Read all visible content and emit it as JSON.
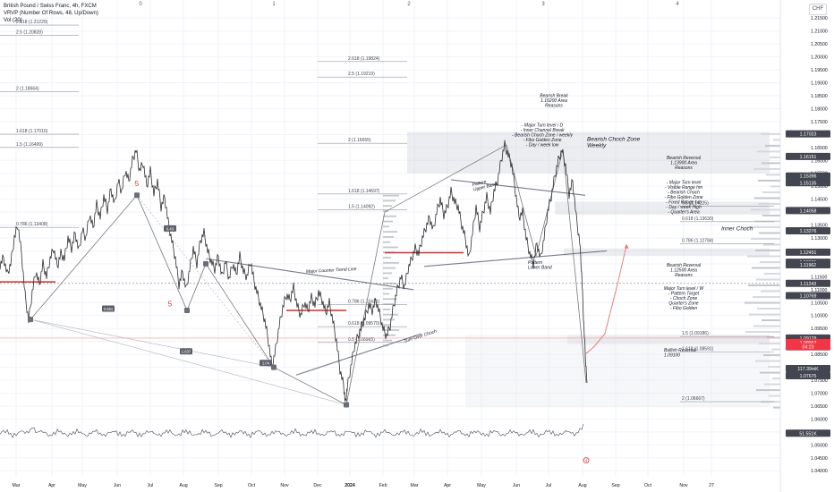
{
  "header": {
    "symbol_line": "British Pound / Swiss Franc, 4h, FXCM",
    "vrvp_line": "VRVP (Number Of Rows, 48, Up/Down)",
    "vol_line": "Vol (20)",
    "currency_button": "CHF"
  },
  "colors": {
    "wave": "#7a7a7a",
    "price": "#2f2f2f",
    "red_level": "#d32f2f",
    "projection": "#e57373",
    "volume_up": "#d7d9de",
    "volume_down": "#c4c7cd"
  },
  "chart_data": {
    "type": "line",
    "title": "",
    "xlabel": "",
    "ylabel": "",
    "x_ticks": [
      "Mar",
      "Apr",
      "May",
      "Jun",
      "Jul",
      "Aug",
      "Sep",
      "Oct",
      "Nov",
      "Dec",
      "2024",
      "Feb",
      "Mar",
      "Apr",
      "May",
      "Jun",
      "Jul",
      "Aug",
      "Sep",
      "Oct",
      "Nov",
      "27"
    ],
    "y_ticks": [
      1.04,
      1.045,
      1.05,
      1.055,
      1.06,
      1.065,
      1.07,
      1.075,
      1.08,
      1.085,
      1.09,
      1.095,
      1.1,
      1.105,
      1.11,
      1.115,
      1.12,
      1.125,
      1.13,
      1.135,
      1.14,
      1.145,
      1.15,
      1.155,
      1.16,
      1.165,
      1.17,
      1.175,
      1.18,
      1.185,
      1.19,
      1.195,
      1.2,
      1.205,
      1.21,
      1.215
    ],
    "ylim": [
      1.038,
      1.222
    ],
    "grid": true,
    "scale": "linear",
    "price_series": [
      [
        0,
        1.1195
      ],
      [
        4,
        1.1225
      ],
      [
        8,
        1.116
      ],
      [
        12,
        1.12
      ],
      [
        16,
        1.13
      ],
      [
        20,
        1.135
      ],
      [
        24,
        1.124
      ],
      [
        28,
        1.108
      ],
      [
        32,
        1.098
      ],
      [
        36,
        1.109
      ],
      [
        40,
        1.117
      ],
      [
        44,
        1.112
      ],
      [
        48,
        1.12
      ],
      [
        52,
        1.115
      ],
      [
        56,
        1.122
      ],
      [
        60,
        1.126
      ],
      [
        64,
        1.119
      ],
      [
        68,
        1.124
      ],
      [
        72,
        1.122
      ],
      [
        76,
        1.13
      ],
      [
        80,
        1.126
      ],
      [
        84,
        1.132
      ],
      [
        88,
        1.125
      ],
      [
        92,
        1.133
      ],
      [
        96,
        1.13
      ],
      [
        100,
        1.139
      ],
      [
        104,
        1.134
      ],
      [
        108,
        1.143
      ],
      [
        112,
        1.138
      ],
      [
        116,
        1.146
      ],
      [
        120,
        1.141
      ],
      [
        124,
        1.149
      ],
      [
        128,
        1.143
      ],
      [
        132,
        1.152
      ],
      [
        136,
        1.148
      ],
      [
        140,
        1.156
      ],
      [
        144,
        1.152
      ],
      [
        148,
        1.16
      ],
      [
        152,
        1.164
      ],
      [
        156,
        1.156
      ],
      [
        160,
        1.159
      ],
      [
        164,
        1.15
      ],
      [
        168,
        1.156
      ],
      [
        172,
        1.147
      ],
      [
        176,
        1.152
      ],
      [
        180,
        1.142
      ],
      [
        184,
        1.146
      ],
      [
        188,
        1.136
      ],
      [
        192,
        1.129
      ],
      [
        196,
        1.122
      ],
      [
        200,
        1.112
      ],
      [
        204,
        1.117
      ],
      [
        208,
        1.11
      ],
      [
        212,
        1.118
      ],
      [
        216,
        1.126
      ],
      [
        220,
        1.12
      ],
      [
        224,
        1.129
      ],
      [
        228,
        1.132
      ],
      [
        232,
        1.125
      ],
      [
        236,
        1.121
      ],
      [
        240,
        1.118
      ],
      [
        244,
        1.123
      ],
      [
        248,
        1.115
      ],
      [
        252,
        1.121
      ],
      [
        256,
        1.114
      ],
      [
        260,
        1.12
      ],
      [
        264,
        1.116
      ],
      [
        268,
        1.123
      ],
      [
        272,
        1.117
      ],
      [
        276,
        1.115
      ],
      [
        280,
        1.121
      ],
      [
        284,
        1.113
      ],
      [
        288,
        1.108
      ],
      [
        292,
        1.103
      ],
      [
        296,
        1.098
      ],
      [
        300,
        1.09
      ],
      [
        304,
        1.08
      ],
      [
        308,
        1.087
      ],
      [
        312,
        1.096
      ],
      [
        316,
        1.103
      ],
      [
        320,
        1.108
      ],
      [
        324,
        1.106
      ],
      [
        328,
        1.111
      ],
      [
        332,
        1.104
      ],
      [
        336,
        1.1
      ],
      [
        340,
        1.105
      ],
      [
        344,
        1.102
      ],
      [
        348,
        1.107
      ],
      [
        352,
        1.104
      ],
      [
        356,
        1.109
      ],
      [
        360,
        1.106
      ],
      [
        364,
        1.101
      ],
      [
        368,
        1.105
      ],
      [
        372,
        1.098
      ],
      [
        376,
        1.09
      ],
      [
        380,
        1.079
      ],
      [
        384,
        1.073
      ],
      [
        386,
        1.066
      ],
      [
        388,
        1.072
      ],
      [
        392,
        1.08
      ],
      [
        396,
        1.088
      ],
      [
        400,
        1.092
      ],
      [
        404,
        1.096
      ],
      [
        408,
        1.099
      ],
      [
        412,
        1.104
      ],
      [
        416,
        1.102
      ],
      [
        420,
        1.106
      ],
      [
        424,
        1.101
      ],
      [
        428,
        1.095
      ],
      [
        432,
        1.092
      ],
      [
        436,
        1.096
      ],
      [
        440,
        1.104
      ],
      [
        444,
        1.11
      ],
      [
        448,
        1.115
      ],
      [
        452,
        1.111
      ],
      [
        456,
        1.118
      ],
      [
        460,
        1.122
      ],
      [
        464,
        1.126
      ],
      [
        468,
        1.124
      ],
      [
        472,
        1.13
      ],
      [
        476,
        1.134
      ],
      [
        480,
        1.138
      ],
      [
        484,
        1.133
      ],
      [
        488,
        1.14
      ],
      [
        492,
        1.145
      ],
      [
        496,
        1.139
      ],
      [
        500,
        1.142
      ],
      [
        504,
        1.148
      ],
      [
        508,
        1.144
      ],
      [
        512,
        1.142
      ],
      [
        516,
        1.135
      ],
      [
        520,
        1.13
      ],
      [
        524,
        1.122
      ],
      [
        528,
        1.132
      ],
      [
        532,
        1.142
      ],
      [
        536,
        1.134
      ],
      [
        540,
        1.14
      ],
      [
        544,
        1.146
      ],
      [
        548,
        1.14
      ],
      [
        552,
        1.148
      ],
      [
        556,
        1.152
      ],
      [
        560,
        1.16
      ],
      [
        564,
        1.166
      ],
      [
        568,
        1.162
      ],
      [
        572,
        1.158
      ],
      [
        576,
        1.148
      ],
      [
        580,
        1.138
      ],
      [
        584,
        1.14
      ],
      [
        588,
        1.13
      ],
      [
        592,
        1.124
      ],
      [
        596,
        1.12
      ],
      [
        600,
        1.128
      ],
      [
        604,
        1.122
      ],
      [
        608,
        1.13
      ],
      [
        612,
        1.14
      ],
      [
        616,
        1.146
      ],
      [
        620,
        1.154
      ],
      [
        624,
        1.16
      ],
      [
        628,
        1.164
      ],
      [
        632,
        1.158
      ],
      [
        636,
        1.147
      ],
      [
        640,
        1.152
      ],
      [
        644,
        1.138
      ],
      [
        648,
        1.128
      ],
      [
        650,
        1.116
      ],
      [
        652,
        1.1
      ],
      [
        654,
        1.085
      ],
      [
        656,
        1.074
      ]
    ],
    "projection_path": [
      [
        654,
        1.085
      ],
      [
        664,
        1.088
      ],
      [
        676,
        1.093
      ],
      [
        690,
        1.112
      ],
      [
        700,
        1.127
      ]
    ],
    "wave_path": [
      [
        34,
        1.0985
      ],
      [
        153,
        1.1465
      ],
      [
        209,
        1.102
      ],
      [
        230,
        1.12
      ],
      [
        306,
        1.08
      ],
      [
        387,
        1.0655
      ],
      [
        430,
        1.14
      ],
      [
        566,
        1.166
      ],
      [
        599,
        1.123
      ],
      [
        629,
        1.164
      ],
      [
        655,
        1.074
      ]
    ],
    "fib_left": [
      {
        "label": "2.618 (1.21229)",
        "y": 1.2123
      },
      {
        "label": "2.5 (1.20828)",
        "y": 1.2083
      },
      {
        "label": "2 (1.18664)",
        "y": 1.1866
      },
      {
        "label": "1.618 (1.17010)",
        "y": 1.1701
      },
      {
        "label": "1.5 (1.16499)",
        "y": 1.165
      },
      {
        "label": "0.786 (1.13408)",
        "y": 1.1341
      }
    ],
    "fib_mid": [
      {
        "label": "2.618 (1.19824)",
        "y": 1.1982
      },
      {
        "label": "2.5 (1.19219)",
        "y": 1.1922
      },
      {
        "label": "2 (1.16655)",
        "y": 1.1666
      },
      {
        "label": "1.618 (1.14697)",
        "y": 1.147
      },
      {
        "label": "1.5 (1.14092)",
        "y": 1.1409
      },
      {
        "label": "0.786 (1.10421)",
        "y": 1.1042
      },
      {
        "label": "0.618 (1.09570)",
        "y": 1.0957
      },
      {
        "label": "0.5 (1.08965)",
        "y": 1.0896
      }
    ],
    "fib_right": [
      {
        "label": "0.5 (1.14225)",
        "y": 1.1422
      },
      {
        "label": "0.618 (1.13630)",
        "y": 1.1363
      },
      {
        "label": "0.786 (1.12784)",
        "y": 1.1278
      },
      {
        "label": "1.5 (1.09186)",
        "y": 1.0919
      },
      {
        "label": "1.618 (1.08591)",
        "y": 1.0859
      },
      {
        "label": "2 (1.06667)",
        "y": 1.0667
      }
    ],
    "price_tags": [
      {
        "label": "1.17023",
        "y": 1.17023,
        "bg": "#434651",
        "fg": "#ffffff"
      },
      {
        "label": "1.16151",
        "y": 1.16151,
        "bg": "#434651",
        "fg": "#ffffff"
      },
      {
        "label": "1.15396",
        "y": 1.15396,
        "bg": "#434651",
        "fg": "#ffffff"
      },
      {
        "label": "1.15135",
        "y": 1.15135,
        "bg": "#434651",
        "fg": "#ffffff"
      },
      {
        "label": "1.14058",
        "y": 1.14058,
        "bg": "#434651",
        "fg": "#ffffff"
      },
      {
        "label": "1.13276",
        "y": 1.13276,
        "bg": "#434651",
        "fg": "#ffffff"
      },
      {
        "label": "1.12451",
        "y": 1.12451,
        "bg": "#434651",
        "fg": "#ffffff"
      },
      {
        "label": "1.12061",
        "y": 1.12061,
        "bg": "#434651",
        "fg": "#ffffff"
      },
      {
        "label": "1.11962",
        "y": 1.11962,
        "bg": "#434651",
        "fg": "#ffffff"
      },
      {
        "label": "1.11243",
        "y": 1.11243,
        "bg": "#434651",
        "fg": "#ffffff"
      },
      {
        "label": "1.10769",
        "y": 1.10769,
        "bg": "#434651",
        "fg": "#ffffff"
      },
      {
        "label": "1.09129",
        "y": 1.09129,
        "bg": "#434651",
        "fg": "#ffffff"
      },
      {
        "label": "1.08952",
        "y": 1.08952,
        "bg": "#f23645",
        "fg": "#ffffff"
      },
      {
        "label": "04:23",
        "y": 1.0879,
        "bg": "#f23645",
        "fg": "#ffffff"
      },
      {
        "label": "117.39mK",
        "y": 1.0795,
        "bg": "#434651",
        "fg": "#ffffff"
      },
      {
        "label": "1.07675",
        "y": 1.07675,
        "bg": "#434651",
        "fg": "#ffffff"
      },
      {
        "label": "51.551K",
        "y": 1.0545,
        "bg": "#434651",
        "fg": "#ffffff"
      }
    ],
    "annotations": [
      {
        "id": "bearish-break",
        "lines": [
          "Bearish Break",
          "1.16200 Area",
          "Reasons"
        ],
        "x": 619,
        "y": 1.1845
      },
      {
        "id": "turn-levels-top",
        "lines": [
          "- Major Turn level / D",
          "- Inner Channel Break",
          "- Bearish Choch Zone / weekly",
          "- Fibo Golden Zone",
          "- Day / week low"
        ],
        "x": 606,
        "y": 1.173
      },
      {
        "id": "choch-weekly",
        "lines": [
          "Bearish Choch Zone",
          "Weekly"
        ],
        "x": 656,
        "y": 1.1675
      },
      {
        "id": "bearish-reversal-1",
        "lines": [
          "Bearish Reversal",
          "1.13900 Area",
          "Reasons"
        ],
        "x": 764,
        "y": 1.1605
      },
      {
        "id": "turn-levels-mid",
        "lines": [
          "- Major Turn level",
          "- Visible Range hm",
          "- Bearish Choch",
          "- Fibo Golden Zone",
          "- Fixed Range hm",
          "- Day / week High",
          "- Quarter's Area"
        ],
        "x": 764,
        "y": 1.151
      },
      {
        "id": "inner-choch",
        "lines": [
          "Inner Choch"
        ],
        "x": 806,
        "y": 1.133
      },
      {
        "id": "bearish-reversal-2",
        "lines": [
          "Bearish  Reversal",
          "1.12500 Area",
          "Reasons"
        ],
        "x": 764,
        "y": 1.119
      },
      {
        "id": "turn-levels-low",
        "lines": [
          "Major Turn level / W",
          "- Pattern Target",
          "- Choch Zone",
          "Quarter's Zone",
          "- Fibo Golden"
        ],
        "x": 764,
        "y": 1.11
      },
      {
        "id": "bullish-reversal",
        "lines": [
          "Bullish Reversal",
          "1.09100"
        ],
        "x": 742,
        "y": 1.086
      },
      {
        "id": "pattern-upper",
        "lines": [
          "Pattern",
          "Upper Band"
        ],
        "x": 528,
        "y": 1.15
      },
      {
        "id": "pattern-lower",
        "lines": [
          "Pattern",
          "Lower Band"
        ],
        "x": 590,
        "y": 1.12
      },
      {
        "id": "major-counter",
        "lines": [
          "Major Counter Trend Line"
        ],
        "x": 342,
        "y": 1.1165
      },
      {
        "id": "turn-over-choch",
        "lines": [
          "Turn Over Choch"
        ],
        "x": 452,
        "y": 1.0895
      }
    ],
    "wave_labels": [
      {
        "label": "5",
        "x": 153,
        "y": 1.15,
        "color": "#d32f2f"
      },
      {
        "label": "5",
        "x": 190,
        "y": 1.1035,
        "color": "#d32f2f"
      },
      {
        "label": "0",
        "x": 157,
        "y": 1.22,
        "color": "#555555"
      },
      {
        "label": "1",
        "x": 306,
        "y": 1.22,
        "color": "#555555"
      },
      {
        "label": "2",
        "x": 457,
        "y": 1.22,
        "color": "#555555"
      },
      {
        "label": "3",
        "x": 607,
        "y": 1.22,
        "color": "#555555"
      },
      {
        "label": "4",
        "x": 757,
        "y": 1.22,
        "color": "#555555"
      }
    ],
    "boxes": [
      {
        "label": "0.651",
        "x": 121,
        "y": 1.1025
      },
      {
        "label": "0.43",
        "x": 190,
        "y": 1.1335
      },
      {
        "label": "1.04",
        "x": 297,
        "y": 1.0815
      },
      {
        "label": "1.637",
        "x": 208,
        "y": 1.086
      }
    ],
    "zone_shades": [
      {
        "y_top": 1.171,
        "y_bot": 1.155,
        "x0": 455,
        "x1": 860
      },
      {
        "y_top": 1.144,
        "y_bot": 1.139,
        "x0": 620,
        "x1": 860
      },
      {
        "y_top": 1.126,
        "y_bot": 1.123,
        "x0": 630,
        "x1": 860
      },
      {
        "y_top": 1.0925,
        "y_bot": 1.089,
        "x0": 634,
        "x1": 860
      }
    ],
    "red_levels": [
      {
        "y": 1.113,
        "x0": 0,
        "x1": 62
      },
      {
        "y": 1.102,
        "x0": 320,
        "x1": 387
      },
      {
        "y": 1.1243,
        "x0": 430,
        "x1": 518
      }
    ],
    "trend_lines": [
      {
        "id": "major-counter-trend-line",
        "from": [
          230,
          1.122
        ],
        "to": [
          462,
          1.11
        ]
      },
      {
        "id": "turn-over-choch-line",
        "from": [
          331,
          1.077
        ],
        "to": [
          471,
          1.093
        ]
      },
      {
        "id": "upper-band-line",
        "from": [
          504,
          1.1525
        ],
        "to": [
          654,
          1.1465
        ]
      },
      {
        "id": "lower-band-line",
        "from": [
          474,
          1.119
        ],
        "to": [
          678,
          1.125
        ]
      }
    ],
    "volume_spike_label": "4"
  }
}
